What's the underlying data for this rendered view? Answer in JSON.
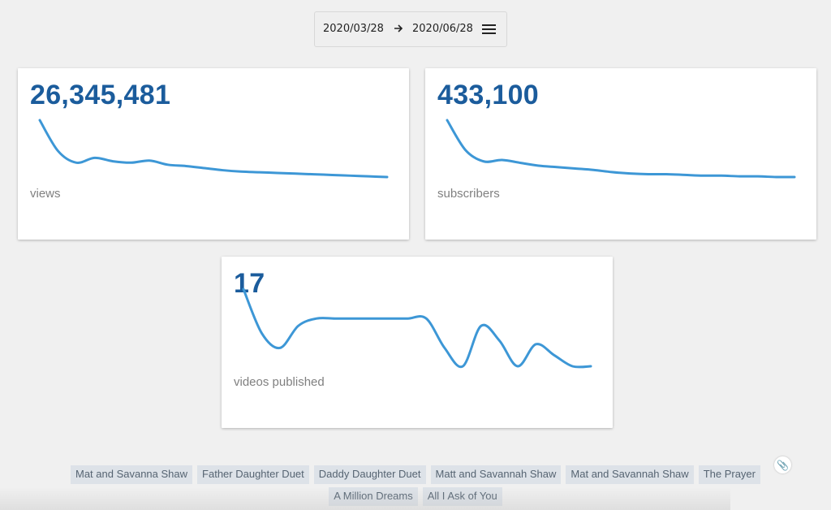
{
  "date_range": {
    "start": "2020/03/28",
    "end": "2020/06/28",
    "arrow_icon": "arrow-right-icon",
    "menu_icon": "hamburger-menu-icon"
  },
  "cards": {
    "views": {
      "value": "26,345,481",
      "label": "views"
    },
    "subscribers": {
      "value": "433,100",
      "label": "subscribers"
    },
    "videos": {
      "value": "17",
      "label": "videos published"
    }
  },
  "tags": [
    "Mat and Savanna Shaw",
    "Father Daughter Duet",
    "Daddy Daughter Duet",
    "Matt and Savannah Shaw",
    "Mat and Savannah Shaw",
    "The Prayer",
    "A Million Dreams",
    "All I Ask of You"
  ],
  "clip_icon": "paperclip-icon",
  "colors": {
    "accent": "#1b5c9c",
    "sparkline": "#3d97d6",
    "tag_bg": "#dde2e8"
  },
  "chart_data": [
    {
      "type": "line",
      "series": [
        {
          "values": [
            100,
            55,
            38,
            45,
            40,
            38,
            41,
            35,
            33,
            30,
            27,
            25,
            24,
            23,
            22,
            21,
            20,
            19,
            18,
            17
          ]
        }
      ]
    },
    {
      "type": "line",
      "series": [
        {
          "values": [
            100,
            58,
            42,
            44,
            40,
            36,
            34,
            32,
            30,
            27,
            25,
            24,
            24,
            23,
            22,
            22,
            21,
            21,
            20,
            20
          ]
        }
      ]
    },
    {
      "type": "line",
      "series": [
        {
          "values": [
            3.0,
            1.8,
            1.4,
            2.0,
            2.2,
            2.2,
            2.2,
            2.2,
            2.2,
            2.2,
            2.2,
            1.4,
            0.9,
            2.0,
            1.6,
            0.9,
            1.5,
            1.2,
            0.9,
            0.9
          ]
        }
      ]
    }
  ]
}
